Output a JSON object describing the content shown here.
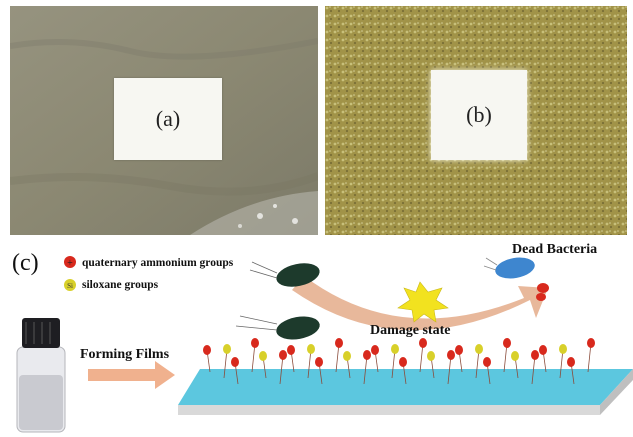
{
  "panels": {
    "a": {
      "label": "(a)"
    },
    "b": {
      "label": "(b)"
    },
    "c": {
      "label": "(c)"
    }
  },
  "legend": {
    "quaternary": {
      "text": "quaternary ammonium groups",
      "symbol": "+"
    },
    "siloxane": {
      "text": "siloxane groups",
      "symbol": "Si"
    }
  },
  "labels": {
    "dead_bacteria": "Dead Bacteria",
    "damage_state": "Damage state",
    "forming_films": "Forming Films"
  },
  "colors": {
    "quaternary": "#d8291d",
    "siloxane": "#d8d02a",
    "film": "#5cc7df",
    "arrow": "#f0b18e",
    "bacteria_live": "#1d3a2c",
    "bacteria_dead": "#3e86cf",
    "burst": "#f2e21f"
  }
}
